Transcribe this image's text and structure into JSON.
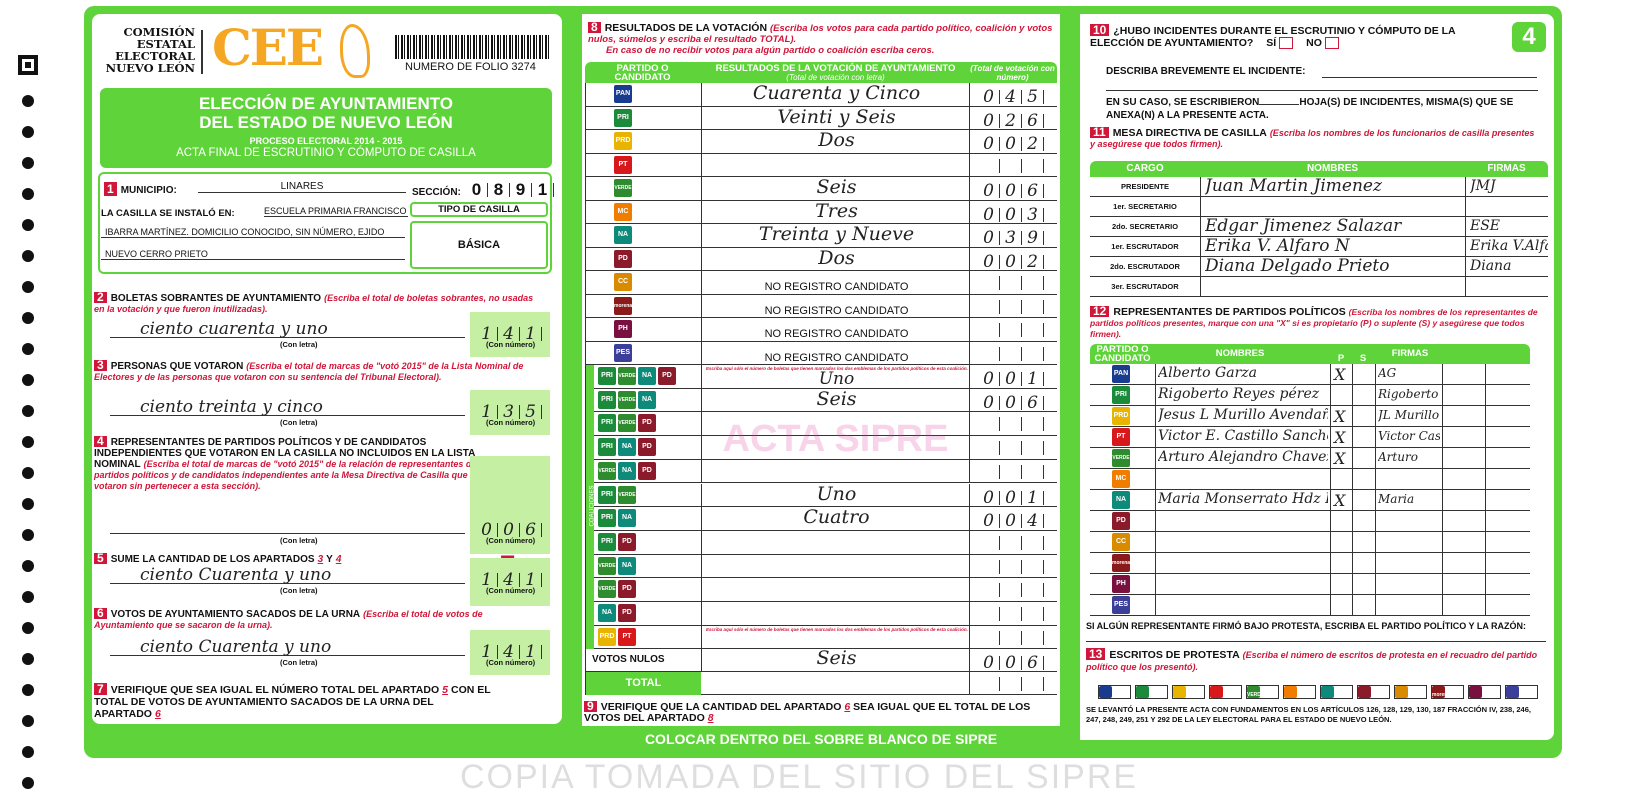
{
  "header": {
    "org": [
      "COMISIÓN",
      "ESTATAL",
      "ELECTORAL",
      "NUEVO LEÓN"
    ],
    "logo": "CEE",
    "folio": "NUMERO DE FOLIO 3274",
    "title1": "ELECCIÓN DE AYUNTAMIENTO",
    "title2": "DEL ESTADO DE NUEVO LEÓN",
    "process": "PROCESO ELECTORAL 2014 - 2015",
    "subtitle": "ACTA FINAL DE ESCRUTINIO Y CÓMPUTO DE CASILLA",
    "page_badge": "4"
  },
  "s1": {
    "n": "1",
    "municipio_label": "MUNICIPIO:",
    "municipio": "LINARES",
    "seccion_label": "SECCIÓN:",
    "seccion": [
      "0",
      "8",
      "9",
      "1"
    ],
    "instalo_label": "LA CASILLA SE INSTALÓ EN:",
    "lugar": [
      "ESCUELA PRIMARIA FRANCISCO",
      "IBARRA MARTÍNEZ. DOMICILIO CONOCIDO, SIN NÚMERO, EJIDO",
      "NUEVO CERRO PRIETO"
    ],
    "tipo_label": "TIPO DE CASILLA",
    "tipo": "BÁSICA"
  },
  "s2": {
    "n": "2",
    "title": "BOLETAS SOBRANTES DE AYUNTAMIENTO",
    "note": "(Escriba el total de boletas sobrantes, no usadas en la votación y que fueron inutilizadas).",
    "letra": "ciento cuarenta y uno",
    "numero": [
      "1",
      "4",
      "1"
    ],
    "con_letra": "(Con letra)",
    "con_numero": "(Con número)"
  },
  "s3": {
    "n": "3",
    "title": "PERSONAS QUE VOTARON",
    "note": "(Escriba el total de marcas de \"votó 2015\" de la Lista Nominal de Electores y de las personas que votaron con su sentencia del Tribunal Electoral).",
    "letra": "ciento treinta y cinco",
    "numero": [
      "1",
      "3",
      "5"
    ],
    "con_letra": "(Con letra)",
    "con_numero": "(Con número)"
  },
  "s4": {
    "n": "4",
    "title": "REPRESENTANTES DE PARTIDOS POLÍTICOS Y DE CANDIDATOS INDEPENDIENTES QUE VOTARON EN LA CASILLA NO INCLUIDOS EN LA LISTA NOMINAL",
    "note": "(Escriba el total de marcas de \"votó 2015\" de la relación de representantes de partidos políticos y de candidatos independientes ante la Mesa Directiva de Casilla que votaron sin pertenecer a esta sección).",
    "sign": "+",
    "numero": [
      "0",
      "0",
      "6"
    ],
    "con_letra": "(Con letra)",
    "con_numero": "(Con número)"
  },
  "s5": {
    "n": "5",
    "title": "SUME LA CANTIDAD DE LOS APARTADOS",
    "a": "3",
    "y": "Y",
    "b": "4",
    "sign": "=",
    "letra": "ciento Cuarenta y uno",
    "numero": [
      "1",
      "4",
      "1"
    ],
    "con_letra": "(Con letra)",
    "con_numero": "(Con número)"
  },
  "s6": {
    "n": "6",
    "title": "VOTOS DE AYUNTAMIENTO SACADOS DE LA URNA",
    "note": "(Escriba el total de votos de Ayuntamiento que se sacaron de la urna).",
    "letra": "ciento Cuarenta y uno",
    "numero": [
      "1",
      "4",
      "1"
    ],
    "con_letra": "(Con letra)",
    "con_numero": "(Con número)"
  },
  "s7": {
    "n": "7",
    "text1": "VERIFIQUE QUE SEA IGUAL EL NÚMERO TOTAL DEL APARTADO",
    "a": "5",
    "text2": "CON EL TOTAL DE VOTOS DE AYUNTAMIENTO SACADOS DE LA URNA DEL APARTADO",
    "b": "6"
  },
  "s8": {
    "n": "8",
    "title": "RESULTADOS DE LA VOTACIÓN",
    "note1": "(Escriba los votos para cada partido político, coalición y votos nulos, súmelos y escriba el resultado TOTAL).",
    "note2": "En caso de no recibir votos para algún partido o coalición escriba ceros.",
    "h_party": "PARTIDO O CANDIDATO",
    "h_result": "RESULTADOS DE LA VOTACIÓN DE AYUNTAMIENTO",
    "h_result_sub": "(Total de votación con letra)",
    "h_num": "(Total de votación con número)",
    "parties": [
      {
        "logos": [
          [
            "PAN",
            "#1a3c8f"
          ]
        ],
        "letra": "Cuarenta y Cinco",
        "num": [
          "0",
          "4",
          "5"
        ]
      },
      {
        "logos": [
          [
            "PRI",
            "#1b8a3a"
          ]
        ],
        "letra": "Veinti y Seis",
        "num": [
          "0",
          "2",
          "6"
        ]
      },
      {
        "logos": [
          [
            "PRD",
            "#e8b400"
          ]
        ],
        "letra": "Dos",
        "num": [
          "0",
          "0",
          "2"
        ]
      },
      {
        "logos": [
          [
            "PT",
            "#d7191c"
          ]
        ],
        "letra": "",
        "num": [
          "",
          "",
          ""
        ]
      },
      {
        "logos": [
          [
            "VERDE",
            "#2e8b2e"
          ]
        ],
        "letra": "Seis",
        "num": [
          "0",
          "0",
          "6"
        ]
      },
      {
        "logos": [
          [
            "MC",
            "#f07c00"
          ]
        ],
        "letra": "Tres",
        "num": [
          "0",
          "0",
          "3"
        ]
      },
      {
        "logos": [
          [
            "NA",
            "#0e8a7a"
          ]
        ],
        "letra": "Treinta y Nueve",
        "num": [
          "0",
          "3",
          "9"
        ]
      },
      {
        "logos": [
          [
            "PD",
            "#8b1a2b"
          ]
        ],
        "letra": "Dos",
        "num": [
          "0",
          "0",
          "2"
        ]
      },
      {
        "logos": [
          [
            "CC",
            "#d98b00"
          ]
        ],
        "letra": "NO REGISTRO CANDIDATO",
        "num": [
          "",
          "",
          ""
        ],
        "printed": true
      },
      {
        "logos": [
          [
            "morena",
            "#8b1a1a"
          ]
        ],
        "letra": "NO REGISTRO CANDIDATO",
        "num": [
          "",
          "",
          ""
        ],
        "printed": true
      },
      {
        "logos": [
          [
            "PH",
            "#7a1040"
          ]
        ],
        "letra": "NO REGISTRO CANDIDATO",
        "num": [
          "",
          "",
          ""
        ],
        "printed": true
      },
      {
        "logos": [
          [
            "PES",
            "#3b3f9a"
          ]
        ],
        "letra": "NO REGISTRO CANDIDATO",
        "num": [
          "",
          "",
          ""
        ],
        "printed": true
      }
    ],
    "coalition_label": "COALICIONES",
    "coalition_note": "Escriba aquí sólo el número de boletas que tienen marcados los dos emblemas de los partidos políticos de esta coalición.",
    "coalitions": [
      {
        "logos": [
          [
            "PRI",
            "#1b8a3a"
          ],
          [
            "VERDE",
            "#2e8b2e"
          ],
          [
            "NA",
            "#0e8a7a"
          ],
          [
            "PD",
            "#8b1a2b"
          ]
        ],
        "letra": "Uno",
        "num": [
          "0",
          "0",
          "1"
        ]
      },
      {
        "logos": [
          [
            "PRI",
            "#1b8a3a"
          ],
          [
            "VERDE",
            "#2e8b2e"
          ],
          [
            "NA",
            "#0e8a7a"
          ]
        ],
        "letra": "Seis",
        "num": [
          "0",
          "0",
          "6"
        ]
      },
      {
        "logos": [
          [
            "PRI",
            "#1b8a3a"
          ],
          [
            "VERDE",
            "#2e8b2e"
          ],
          [
            "PD",
            "#8b1a2b"
          ]
        ],
        "letra": "",
        "num": [
          "",
          "",
          ""
        ]
      },
      {
        "logos": [
          [
            "PRI",
            "#1b8a3a"
          ],
          [
            "NA",
            "#0e8a7a"
          ],
          [
            "PD",
            "#8b1a2b"
          ]
        ],
        "letra": "",
        "num": [
          "",
          "",
          ""
        ]
      },
      {
        "logos": [
          [
            "VERDE",
            "#2e8b2e"
          ],
          [
            "NA",
            "#0e8a7a"
          ],
          [
            "PD",
            "#8b1a2b"
          ]
        ],
        "letra": "",
        "num": [
          "",
          "",
          ""
        ]
      },
      {
        "logos": [
          [
            "PRI",
            "#1b8a3a"
          ],
          [
            "VERDE",
            "#2e8b2e"
          ]
        ],
        "letra": "Uno",
        "num": [
          "0",
          "0",
          "1"
        ]
      },
      {
        "logos": [
          [
            "PRI",
            "#1b8a3a"
          ],
          [
            "NA",
            "#0e8a7a"
          ]
        ],
        "letra": "Cuatro",
        "num": [
          "0",
          "0",
          "4"
        ]
      },
      {
        "logos": [
          [
            "PRI",
            "#1b8a3a"
          ],
          [
            "PD",
            "#8b1a2b"
          ]
        ],
        "letra": "",
        "num": [
          "",
          "",
          ""
        ]
      },
      {
        "logos": [
          [
            "VERDE",
            "#2e8b2e"
          ],
          [
            "NA",
            "#0e8a7a"
          ]
        ],
        "letra": "",
        "num": [
          "",
          "",
          ""
        ]
      },
      {
        "logos": [
          [
            "VERDE",
            "#2e8b2e"
          ],
          [
            "PD",
            "#8b1a2b"
          ]
        ],
        "letra": "",
        "num": [
          "",
          "",
          ""
        ]
      },
      {
        "logos": [
          [
            "NA",
            "#0e8a7a"
          ],
          [
            "PD",
            "#8b1a2b"
          ]
        ],
        "letra": "",
        "num": [
          "",
          "",
          ""
        ]
      },
      {
        "logos": [
          [
            "PRD",
            "#e8b400"
          ],
          [
            "PT",
            "#d7191c"
          ]
        ],
        "letra": "",
        "num": [
          "",
          "",
          ""
        ]
      }
    ],
    "nulos_label": "VOTOS NULOS",
    "nulos_letra": "Seis",
    "nulos_num": [
      "0",
      "0",
      "6"
    ],
    "total_label": "TOTAL"
  },
  "s9": {
    "n": "9",
    "text1": "VERIFIQUE QUE LA CANTIDAD DEL APARTADO",
    "a": "6",
    "text2": "SEA IGUAL QUE EL TOTAL DE LOS VOTOS DEL APARTADO",
    "b": "8"
  },
  "s10": {
    "n": "10",
    "q": "¿HUBO INCIDENTES DURANTE EL ESCRUTINIO Y CÓMPUTO DE LA ELECCIÓN DE AYUNTAMIENTO?",
    "si": "SÍ",
    "no": "NO",
    "describe": "DESCRIBA BREVEMENTE EL INCIDENTE:",
    "hojas1": "EN SU CASO, SE ESCRIBIERON",
    "hojas2": "HOJA(S) DE INCIDENTES, MISMA(S) QUE SE ANEXA(N) A LA PRESENTE ACTA."
  },
  "s11": {
    "n": "11",
    "title": "MESA DIRECTIVA DE CASILLA",
    "note": "(Escriba los nombres de los funcionarios de casilla presentes y asegúrese que todos firmen).",
    "h": [
      "CARGO",
      "NOMBRES",
      "FIRMAS"
    ],
    "rows": [
      {
        "cargo": "PRESIDENTE",
        "nombre": "Juan Martin Jimenez",
        "firma": "JMJ"
      },
      {
        "cargo": "1er. SECRETARIO",
        "nombre": "",
        "firma": ""
      },
      {
        "cargo": "2do. SECRETARIO",
        "nombre": "Edgar Jimenez Salazar",
        "firma": "ESE"
      },
      {
        "cargo": "1er. ESCRUTADOR",
        "nombre": "Erika V. Alfaro N",
        "firma": "Erika V.Alfaro"
      },
      {
        "cargo": "2do. ESCRUTADOR",
        "nombre": "Diana Delgado Prieto",
        "firma": "Diana"
      },
      {
        "cargo": "3er. ESCRUTADOR",
        "nombre": "",
        "firma": ""
      }
    ]
  },
  "s12": {
    "n": "12",
    "title": "REPRESENTANTES DE PARTIDOS POLÍTICOS",
    "note": "(Escriba los nombres de los representantes de partidos políticos presentes, marque con una \"X\" si es propietario (P) o suplente (S) y asegúrese que todos firmen).",
    "h": [
      "PARTIDO O CANDIDATO",
      "NOMBRES",
      "P",
      "S",
      "FIRMAS"
    ],
    "rows": [
      {
        "logo": [
          "PAN",
          "#1a3c8f"
        ],
        "nombre": "Alberto Garza",
        "p": "X",
        "s": "",
        "firma": "AG"
      },
      {
        "logo": [
          "PRI",
          "#1b8a3a"
        ],
        "nombre": "Rigoberto Reyes pérez",
        "p": "",
        "s": "",
        "firma": "Rigoberto"
      },
      {
        "logo": [
          "PRD",
          "#e8b400"
        ],
        "nombre": "Jesus L Murillo Avendaño",
        "p": "X",
        "s": "",
        "firma": "JL Murillo"
      },
      {
        "logo": [
          "PT",
          "#d7191c"
        ],
        "nombre": "Victor E. Castillo Sanchez",
        "p": "X",
        "s": "",
        "firma": "Victor Castillo"
      },
      {
        "logo": [
          "VERDE",
          "#2e8b2e"
        ],
        "nombre": "Arturo Alejandro Chavez",
        "p": "X",
        "s": "",
        "firma": "Arturo"
      },
      {
        "logo": [
          "MC",
          "#f07c00"
        ],
        "nombre": "",
        "p": "",
        "s": "",
        "firma": ""
      },
      {
        "logo": [
          "NA",
          "#0e8a7a"
        ],
        "nombre": "Maria Monserrato Hdz R",
        "p": "X",
        "s": "",
        "firma": "Maria"
      },
      {
        "logo": [
          "PD",
          "#8b1a2b"
        ],
        "nombre": "",
        "p": "",
        "s": "",
        "firma": ""
      },
      {
        "logo": [
          "CC",
          "#d98b00"
        ],
        "nombre": "",
        "p": "",
        "s": "",
        "firma": ""
      },
      {
        "logo": [
          "morena",
          "#8b1a1a"
        ],
        "nombre": "",
        "p": "",
        "s": "",
        "firma": ""
      },
      {
        "logo": [
          "PH",
          "#7a1040"
        ],
        "nombre": "",
        "p": "",
        "s": "",
        "firma": ""
      },
      {
        "logo": [
          "PES",
          "#3b3f9a"
        ],
        "nombre": "",
        "p": "",
        "s": "",
        "firma": ""
      }
    ],
    "protesta": "SI ALGÚN REPRESENTANTE FIRMÓ BAJO PROTESTA, ESCRIBA EL PARTIDO POLÍTICO Y LA RAZÓN:"
  },
  "s13": {
    "n": "13",
    "title": "ESCRITOS DE PROTESTA",
    "note": "(Escriba el número de escritos de protesta en el recuadro del partido político que los presentó).",
    "logos": [
      [
        "PAN",
        "#1a3c8f"
      ],
      [
        "PRI",
        "#1b8a3a"
      ],
      [
        "PRD",
        "#e8b400"
      ],
      [
        "PT",
        "#d7191c"
      ],
      [
        "VERDE",
        "#2e8b2e"
      ],
      [
        "MC",
        "#f07c00"
      ],
      [
        "NA",
        "#0e8a7a"
      ],
      [
        "PD",
        "#8b1a2b"
      ],
      [
        "CC",
        "#d98b00"
      ],
      [
        "morena",
        "#8b1a1a"
      ],
      [
        "PH",
        "#7a1040"
      ],
      [
        "PES",
        "#3b3f9a"
      ]
    ],
    "footer": "SE LEVANTÓ LA PRESENTE ACTA CON FUNDAMENTOS EN LOS ARTÍCULOS 126, 128, 129, 130, 187 FRACCIÓN IV, 238, 246, 247, 248, 249, 251 Y 292 DE LA LEY ELECTORAL PARA EL ESTADO DE NUEVO LEÓN."
  },
  "bottom_band": "COLOCAR DENTRO DEL SOBRE BLANCO DE SIPRE",
  "watermark": "COPIA TOMADA DEL SITIO DEL SIPRE",
  "stamp": "ACTA SIPRE",
  "colors": {
    "green": "#5fd43a",
    "red": "#d01639",
    "orange": "#f5a623"
  }
}
